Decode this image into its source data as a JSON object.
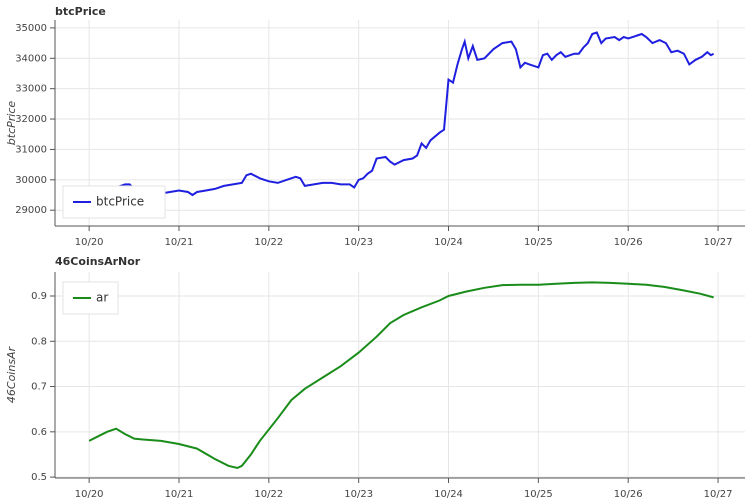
{
  "chart_data": [
    {
      "type": "line",
      "title": "btcPrice",
      "y_label": "btcPrice",
      "x": [
        0.3,
        0.4,
        0.45,
        0.5,
        0.6,
        0.7,
        0.8,
        0.9,
        1.0,
        1.1,
        1.15,
        1.2,
        1.3,
        1.4,
        1.5,
        1.6,
        1.7,
        1.75,
        1.8,
        1.9,
        2.0,
        2.1,
        2.2,
        2.3,
        2.35,
        2.4,
        2.5,
        2.6,
        2.7,
        2.8,
        2.9,
        2.95,
        3.0,
        3.05,
        3.1,
        3.15,
        3.2,
        3.3,
        3.35,
        3.4,
        3.5,
        3.6,
        3.65,
        3.7,
        3.75,
        3.8,
        3.9,
        3.95,
        4.0,
        4.05,
        4.1,
        4.15,
        4.18,
        4.22,
        4.27,
        4.32,
        4.4,
        4.5,
        4.6,
        4.7,
        4.75,
        4.8,
        4.85,
        4.9,
        5.0,
        5.05,
        5.1,
        5.15,
        5.2,
        5.25,
        5.3,
        5.4,
        5.45,
        5.5,
        5.55,
        5.6,
        5.65,
        5.7,
        5.75,
        5.85,
        5.9,
        5.95,
        6.0,
        6.1,
        6.15,
        6.2,
        6.27,
        6.35,
        6.42,
        6.48,
        6.55,
        6.62,
        6.68,
        6.75,
        6.82,
        6.88,
        6.92,
        6.95
      ],
      "series": [
        {
          "name": "btcPrice",
          "color": "#1f1fe0",
          "values": [
            29750,
            29850,
            29850,
            29700,
            29550,
            29500,
            29550,
            29600,
            29650,
            29600,
            29500,
            29600,
            29650,
            29700,
            29800,
            29850,
            29900,
            30150,
            30200,
            30050,
            29950,
            29900,
            30000,
            30100,
            30050,
            29800,
            29850,
            29900,
            29900,
            29850,
            29850,
            29750,
            30000,
            30050,
            30200,
            30300,
            30700,
            30750,
            30600,
            30500,
            30650,
            30700,
            30800,
            31200,
            31050,
            31300,
            31550,
            31650,
            33300,
            33200,
            33800,
            34300,
            34550,
            34000,
            34400,
            33950,
            34000,
            34300,
            34500,
            34550,
            34300,
            33700,
            33850,
            33800,
            33700,
            34100,
            34150,
            33950,
            34100,
            34200,
            34050,
            34150,
            34150,
            34350,
            34500,
            34800,
            34850,
            34500,
            34650,
            34700,
            34600,
            34700,
            34650,
            34750,
            34800,
            34700,
            34500,
            34600,
            34500,
            34200,
            34250,
            34150,
            33800,
            33950,
            34050,
            34200,
            34100,
            34150
          ]
        }
      ],
      "xlim": [
        -0.38,
        7.3
      ],
      "xticks": [
        {
          "value": 0,
          "label": "10/20"
        },
        {
          "value": 1,
          "label": "10/21"
        },
        {
          "value": 2,
          "label": "10/22"
        },
        {
          "value": 3,
          "label": "10/23"
        },
        {
          "value": 4,
          "label": "10/24"
        },
        {
          "value": 5,
          "label": "10/25"
        },
        {
          "value": 6,
          "label": "10/26"
        },
        {
          "value": 7,
          "label": "10/27"
        }
      ],
      "ylim": [
        28480,
        35260
      ],
      "yticks": [
        29000,
        30000,
        31000,
        32000,
        33000,
        34000,
        35000
      ],
      "grid": true,
      "legend": "bottom_left"
    },
    {
      "type": "line",
      "title": "46CoinsArNor",
      "y_label": "46CoinsAr",
      "x": [
        0,
        0.1,
        0.2,
        0.3,
        0.4,
        0.5,
        0.6,
        0.8,
        1.0,
        1.2,
        1.4,
        1.55,
        1.65,
        1.7,
        1.8,
        1.9,
        2.1,
        2.25,
        2.4,
        2.6,
        2.8,
        3.0,
        3.2,
        3.35,
        3.5,
        3.7,
        3.9,
        4.0,
        4.2,
        4.4,
        4.6,
        4.8,
        5.0,
        5.2,
        5.4,
        5.6,
        5.8,
        6.0,
        6.2,
        6.4,
        6.6,
        6.8,
        6.95
      ],
      "series": [
        {
          "name": "ar",
          "color": "#1a8c1a",
          "values": [
            0.58,
            0.59,
            0.6,
            0.607,
            0.595,
            0.585,
            0.583,
            0.58,
            0.573,
            0.563,
            0.54,
            0.525,
            0.52,
            0.525,
            0.55,
            0.58,
            0.63,
            0.67,
            0.695,
            0.72,
            0.745,
            0.775,
            0.81,
            0.84,
            0.858,
            0.875,
            0.89,
            0.9,
            0.91,
            0.918,
            0.924,
            0.925,
            0.925,
            0.927,
            0.929,
            0.93,
            0.929,
            0.927,
            0.925,
            0.92,
            0.913,
            0.905,
            0.897
          ]
        }
      ],
      "xlim": [
        -0.38,
        7.3
      ],
      "xticks": [
        {
          "value": 0,
          "label": "10/20"
        },
        {
          "value": 1,
          "label": "10/21"
        },
        {
          "value": 2,
          "label": "10/22"
        },
        {
          "value": 3,
          "label": "10/23"
        },
        {
          "value": 4,
          "label": "10/24"
        },
        {
          "value": 5,
          "label": "10/25"
        },
        {
          "value": 6,
          "label": "10/26"
        },
        {
          "value": 7,
          "label": "10/27"
        }
      ],
      "ylim": [
        0.498,
        0.953
      ],
      "yticks": [
        0.5,
        0.6,
        0.7,
        0.8,
        0.9
      ],
      "grid": true,
      "legend": "top_left"
    }
  ]
}
